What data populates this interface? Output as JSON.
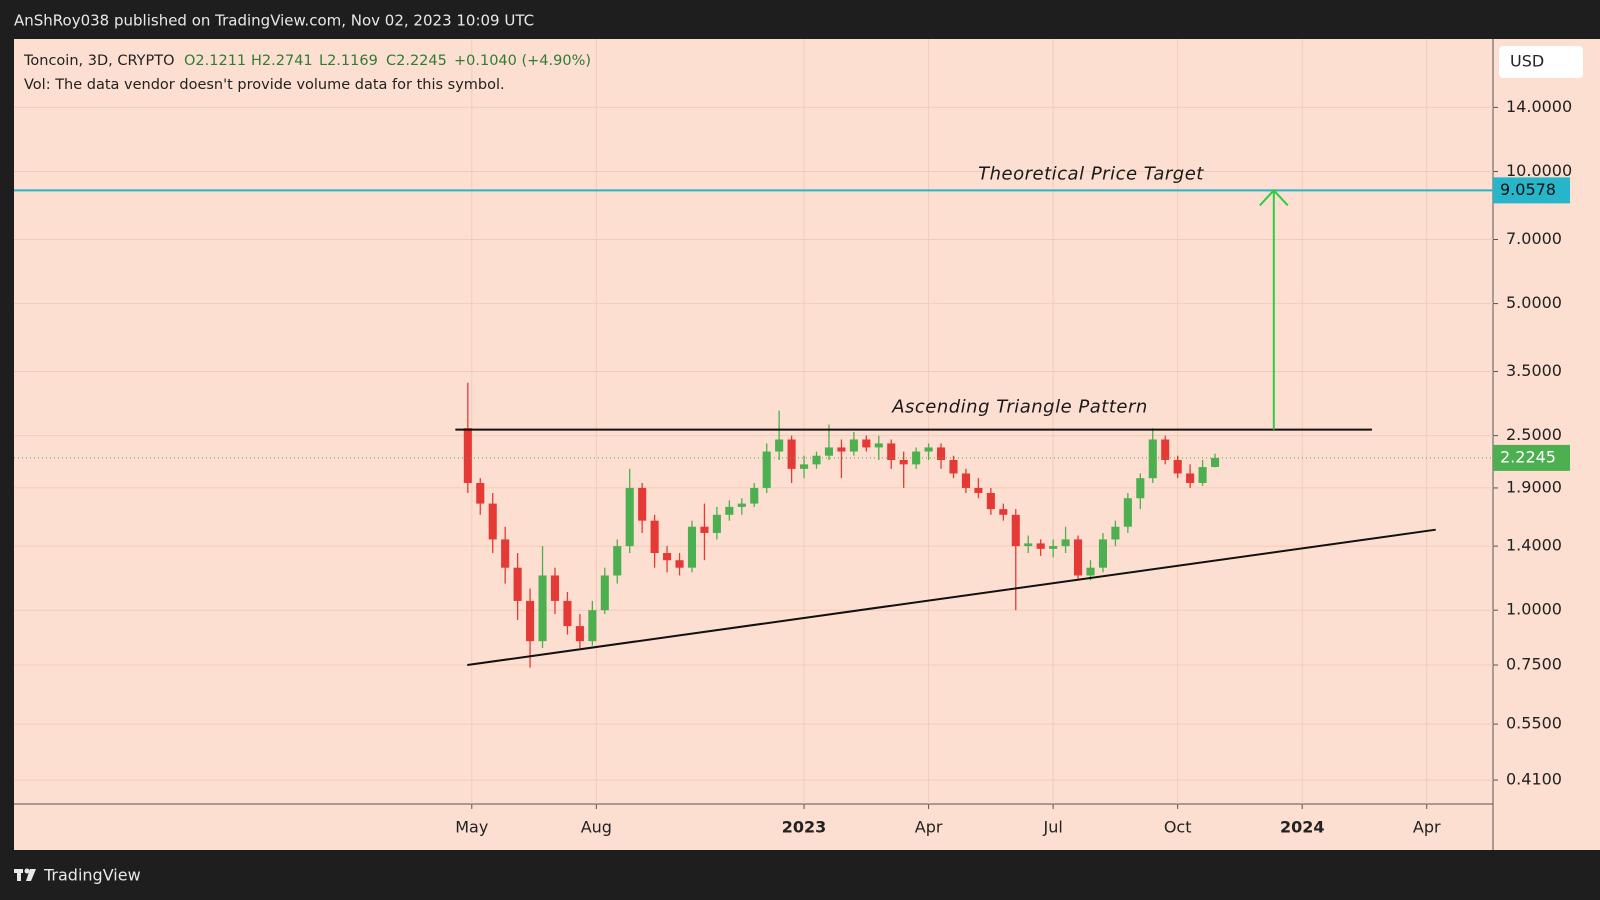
{
  "header": {
    "published": "AnShRoy038 published on TradingView.com, Nov 02, 2023 10:09 UTC"
  },
  "legend": {
    "symbol": "Toncoin, 3D, CRYPTO",
    "ohlc": [
      "O2.1211",
      "H2.2741",
      "L2.1169",
      "C2.2245"
    ],
    "change": "+0.1040 (+4.90%)",
    "volume_note": "Vol: The data vendor doesn't provide volume data for this symbol."
  },
  "currency": "USD",
  "footer": {
    "brand": "TradingView"
  },
  "chart_data": {
    "type": "candlestick",
    "log_scale": true,
    "grid": true,
    "up_color": "#4caf50",
    "down_color": "#e53935",
    "xlim": [
      2021.414,
      2024.383
    ],
    "xticks": [
      {
        "value": 2022.333,
        "label": "May"
      },
      {
        "value": 2022.583,
        "label": "Aug"
      },
      2023,
      {
        "value": 2023.25,
        "label": "Apr"
      },
      {
        "value": 2023.5,
        "label": "Jul"
      },
      {
        "value": 2023.75,
        "label": "Oct"
      },
      2024,
      {
        "value": 2024.25,
        "label": "Apr"
      }
    ],
    "ylim": [
      0.3616,
      20.05
    ],
    "yticks": [
      {
        "value": 0.41,
        "label": "0.4100"
      },
      {
        "value": 0.55,
        "label": "0.5500"
      },
      {
        "value": 0.75,
        "label": "0.7500"
      },
      {
        "value": 1,
        "label": "1.0000"
      },
      {
        "value": 1.4,
        "label": "1.4000"
      },
      {
        "value": 1.9,
        "label": "1.9000"
      },
      {
        "value": 2.5,
        "label": "2.5000"
      },
      {
        "value": 3.5,
        "label": "3.5000"
      },
      {
        "value": 5,
        "label": "5.0000"
      },
      {
        "value": 7,
        "label": "7.0000"
      },
      {
        "value": 10,
        "label": "10.0000"
      },
      {
        "value": 14,
        "label": "14.0000"
      }
    ],
    "x": [
      2022.325,
      2022.35,
      2022.375,
      2022.4,
      2022.425,
      2022.45,
      2022.475,
      2022.5,
      2022.525,
      2022.55,
      2022.575,
      2022.6,
      2022.625,
      2022.65,
      2022.675,
      2022.7,
      2022.725,
      2022.75,
      2022.775,
      2022.8,
      2022.825,
      2022.85,
      2022.875,
      2022.9,
      2022.925,
      2022.95,
      2022.975,
      2023.0,
      2023.025,
      2023.05,
      2023.075,
      2023.1,
      2023.125,
      2023.15,
      2023.175,
      2023.2,
      2023.225,
      2023.25,
      2023.275,
      2023.3,
      2023.325,
      2023.35,
      2023.375,
      2023.4,
      2023.425,
      2023.45,
      2023.475,
      2023.5,
      2023.525,
      2023.55,
      2023.575,
      2023.6,
      2023.625,
      2023.65,
      2023.675,
      2023.7,
      2023.725,
      2023.75,
      2023.775,
      2023.8,
      2023.825
    ],
    "open": [
      2.6,
      1.95,
      1.75,
      1.45,
      1.25,
      1.05,
      0.85,
      1.2,
      1.05,
      0.92,
      0.85,
      1.0,
      1.2,
      1.4,
      1.9,
      1.6,
      1.35,
      1.3,
      1.25,
      1.55,
      1.5,
      1.65,
      1.72,
      1.75,
      1.9,
      2.3,
      2.45,
      2.1,
      2.15,
      2.25,
      2.35,
      2.3,
      2.45,
      2.35,
      2.4,
      2.2,
      2.15,
      2.3,
      2.35,
      2.2,
      2.05,
      1.9,
      1.85,
      1.7,
      1.65,
      1.4,
      1.42,
      1.38,
      1.4,
      1.45,
      1.2,
      1.25,
      1.45,
      1.55,
      1.8,
      2.0,
      2.45,
      2.2,
      2.05,
      1.95,
      2.1211
    ],
    "high": [
      3.3,
      2.0,
      1.85,
      1.55,
      1.35,
      1.12,
      1.4,
      1.25,
      1.1,
      0.98,
      1.05,
      1.25,
      1.45,
      2.1,
      1.95,
      1.65,
      1.4,
      1.35,
      1.6,
      1.75,
      1.72,
      1.78,
      1.8,
      1.95,
      2.4,
      2.85,
      2.5,
      2.25,
      2.3,
      2.65,
      2.45,
      2.55,
      2.5,
      2.5,
      2.45,
      2.3,
      2.35,
      2.4,
      2.4,
      2.25,
      2.1,
      2.0,
      1.9,
      1.75,
      1.7,
      1.48,
      1.45,
      1.45,
      1.55,
      1.48,
      1.3,
      1.5,
      1.6,
      1.85,
      2.05,
      2.6,
      2.5,
      2.25,
      2.15,
      2.2,
      2.2741
    ],
    "low": [
      1.85,
      1.65,
      1.35,
      1.15,
      0.95,
      0.74,
      0.82,
      0.98,
      0.88,
      0.82,
      0.83,
      0.98,
      1.15,
      1.35,
      1.5,
      1.25,
      1.22,
      1.2,
      1.22,
      1.3,
      1.45,
      1.6,
      1.65,
      1.72,
      1.85,
      2.2,
      1.95,
      2.0,
      2.1,
      2.2,
      2.0,
      2.25,
      2.3,
      2.2,
      2.1,
      1.9,
      2.1,
      2.2,
      2.1,
      2.0,
      1.85,
      1.8,
      1.65,
      1.6,
      1.0,
      1.35,
      1.33,
      1.32,
      1.35,
      1.18,
      1.17,
      1.22,
      1.4,
      1.5,
      1.7,
      1.95,
      2.15,
      2.0,
      1.9,
      1.92,
      2.1169
    ],
    "close": [
      1.95,
      1.75,
      1.45,
      1.25,
      1.05,
      0.85,
      1.2,
      1.05,
      0.92,
      0.85,
      1.0,
      1.2,
      1.4,
      1.9,
      1.6,
      1.35,
      1.3,
      1.25,
      1.55,
      1.5,
      1.65,
      1.72,
      1.75,
      1.9,
      2.3,
      2.45,
      2.1,
      2.15,
      2.25,
      2.35,
      2.3,
      2.45,
      2.35,
      2.4,
      2.2,
      2.15,
      2.3,
      2.35,
      2.2,
      2.05,
      1.9,
      1.85,
      1.7,
      1.65,
      1.4,
      1.42,
      1.38,
      1.4,
      1.45,
      1.2,
      1.25,
      1.45,
      1.55,
      1.8,
      2.0,
      2.45,
      2.2,
      2.05,
      1.95,
      2.12,
      2.2245
    ],
    "last_price": 2.2245,
    "last_price_color": "#4caf50",
    "target": {
      "value": 9.0578,
      "color": "#26b5c9",
      "label": "Theoretical Price Target"
    },
    "resistance": {
      "label": "Ascending Triangle Pattern",
      "x": [
        2022.3,
        2024.14
      ],
      "y": [
        2.58,
        2.58
      ]
    },
    "support": {
      "x": [
        2022.324,
        2024.268
      ],
      "y": [
        0.75,
        1.526
      ]
    },
    "arrow": {
      "x": 2023.943,
      "from": 2.58,
      "to": 9.0578,
      "color": "#2ecc40"
    }
  }
}
